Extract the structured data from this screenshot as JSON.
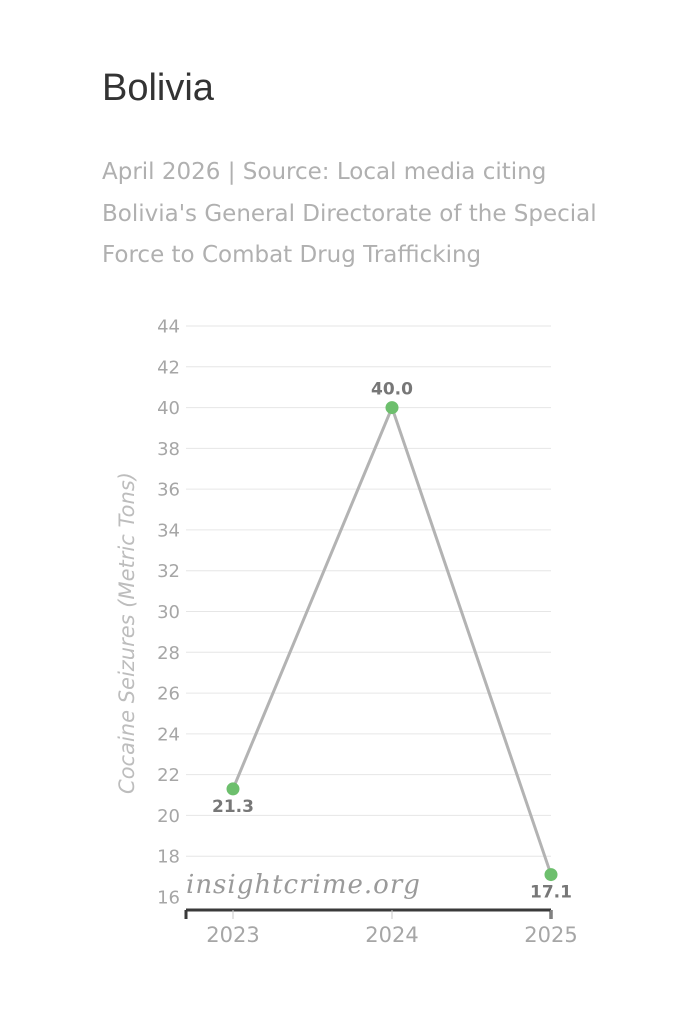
{
  "chart_data": {
    "type": "line",
    "title": "Bolivia",
    "subtitle": "April 2026 | Source: Local media citing Bolivia's General Directorate of the Special Force to Combat Drug Trafficking",
    "xlabel": "",
    "ylabel": "Cocaine Seizures (Metric Tons)",
    "categories": [
      "2023",
      "2024",
      "2025"
    ],
    "series": [
      {
        "values": [
          21.3,
          40.0,
          17.1
        ],
        "labels": [
          "21.3",
          "40.0",
          "17.1"
        ]
      }
    ],
    "ylim": [
      16,
      44
    ],
    "yticks": [
      16,
      18,
      20,
      22,
      24,
      26,
      28,
      30,
      32,
      34,
      36,
      38,
      40,
      42,
      44
    ],
    "grid": true,
    "legend": "none",
    "line_color": "#b3b3b3",
    "marker_color": "#6dbf6d",
    "watermark": "insightcrime.org"
  }
}
